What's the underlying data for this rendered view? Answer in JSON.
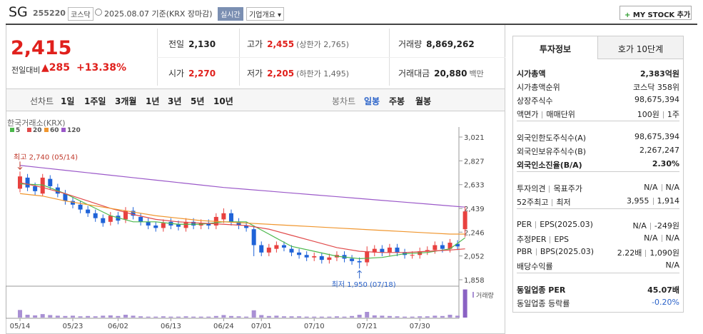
{
  "header": {
    "name": "SG",
    "code": "255220",
    "market": "코스닥",
    "date": "2025.08.07 기준(KRX 장마감)",
    "realtime": "실시간",
    "company": "기업개요",
    "mystock": "MY STOCK 추가"
  },
  "price": {
    "current": "2,415",
    "change_label": "전일대비",
    "change": "285",
    "rate": "+13.38%"
  },
  "quotes": [
    [
      {
        "label": "전일",
        "value": "2,130"
      },
      {
        "label": "고가",
        "value": "2,455",
        "note": "(상한가 2,765)",
        "color": "#e0201c"
      },
      {
        "label": "거래량",
        "value": "8,869,262"
      }
    ],
    [
      {
        "label": "시가",
        "value": "2,270",
        "color": "#e0201c"
      },
      {
        "label": "저가",
        "value": "2,205",
        "note": "(하한가 1,495)",
        "color": "#e0201c"
      },
      {
        "label": "거래대금",
        "value": "20,880",
        "note": "백만"
      }
    ]
  ],
  "periods": [
    "선차트",
    "1일",
    "1주일",
    "3개월",
    "1년",
    "3년",
    "5년",
    "10년"
  ],
  "candle_tabs": [
    "봉차트",
    "일봉",
    "주봉",
    "월봉"
  ],
  "side": {
    "tabs": [
      "투자정보",
      "호가 10단계"
    ],
    "sections": [
      [
        {
          "label": [
            "시가총액"
          ],
          "value": [
            "2,383억원"
          ],
          "bold": true
        },
        {
          "label": [
            "시가총액순위"
          ],
          "value": [
            "코스닥 358위"
          ]
        },
        {
          "label": [
            "상장주식수"
          ],
          "value": [
            "98,675,394"
          ]
        },
        {
          "label": [
            "액면가",
            "매매단위"
          ],
          "value": [
            "100원",
            "1주"
          ]
        }
      ],
      [
        {
          "label": [
            "외국인한도주식수(A)"
          ],
          "value": [
            "98,675,394"
          ]
        },
        {
          "label": [
            "외국인보유주식수(B)"
          ],
          "value": [
            "2,267,247"
          ]
        },
        {
          "label": [
            "외국인소진율(B/A)"
          ],
          "value": [
            "2.30%"
          ],
          "bold": true
        }
      ],
      [
        {
          "label": [
            "투자의견",
            "목표주가"
          ],
          "value": [
            "N/A",
            "N/A"
          ]
        },
        {
          "label": [
            "52주최고",
            "최저"
          ],
          "value": [
            "3,955",
            "1,914"
          ]
        }
      ],
      [
        {
          "label": [
            "PER",
            "EPS(2025.03)"
          ],
          "value": [
            "N/A",
            "-249원"
          ]
        },
        {
          "label": [
            "추정PER",
            "EPS"
          ],
          "value": [
            "N/A",
            "N/A"
          ]
        },
        {
          "label": [
            "PBR",
            "BPS(2025.03)"
          ],
          "value": [
            "2.22배",
            "1,090원"
          ]
        },
        {
          "label": [
            "배당수익률"
          ],
          "value": [
            "N/A"
          ]
        }
      ],
      [
        {
          "label": [
            "동일업종 PER"
          ],
          "value": [
            "45.07배"
          ],
          "bold": true
        },
        {
          "label": [
            "동일업종 등락률"
          ],
          "value": [
            "-0.20%"
          ],
          "color": "#2a62c9"
        }
      ]
    ]
  },
  "chart_data": {
    "type": "candlestick",
    "source": "한국거래소(KRX)",
    "categories": [
      "05/14",
      null,
      null,
      null,
      null,
      null,
      null,
      "05/23",
      null,
      null,
      null,
      null,
      null,
      "06/02",
      null,
      null,
      null,
      null,
      null,
      null,
      "06/13",
      null,
      null,
      null,
      null,
      null,
      null,
      "06/24",
      null,
      null,
      null,
      null,
      "07/01",
      null,
      null,
      null,
      null,
      null,
      null,
      "07/10",
      null,
      null,
      null,
      null,
      null,
      null,
      "07/21",
      null,
      null,
      null,
      null,
      null,
      null,
      "07/30",
      null,
      null,
      null,
      null,
      null,
      null
    ],
    "open": [
      2600,
      2690,
      2620,
      2560,
      2680,
      2610,
      2560,
      2500,
      2470,
      2430,
      2400,
      2360,
      2330,
      2380,
      2350,
      2420,
      2370,
      2330,
      2300,
      2280,
      2330,
      2310,
      2280,
      2330,
      2300,
      2320,
      2300,
      2350,
      2400,
      2330,
      2300,
      2270,
      2140,
      2080,
      2110,
      2140,
      2110,
      2080,
      2060,
      2040,
      2050,
      2020,
      2040,
      2060,
      2030,
      2010,
      2000,
      2080,
      2110,
      2080,
      2120,
      2080,
      2060,
      2060,
      2090,
      2100,
      2140,
      2110,
      2150,
      2270
    ],
    "high": [
      2740,
      2720,
      2650,
      2720,
      2710,
      2640,
      2590,
      2530,
      2500,
      2460,
      2430,
      2390,
      2410,
      2410,
      2450,
      2450,
      2400,
      2360,
      2330,
      2350,
      2360,
      2340,
      2360,
      2360,
      2350,
      2350,
      2400,
      2440,
      2430,
      2360,
      2330,
      2300,
      2170,
      2150,
      2170,
      2170,
      2140,
      2110,
      2090,
      2080,
      2080,
      2070,
      2090,
      2090,
      2060,
      2040,
      2130,
      2140,
      2140,
      2150,
      2150,
      2110,
      2090,
      2120,
      2130,
      2170,
      2170,
      2190,
      2180,
      2455
    ],
    "low": [
      2570,
      2580,
      2550,
      2540,
      2590,
      2530,
      2470,
      2440,
      2400,
      2370,
      2330,
      2290,
      2300,
      2310,
      2320,
      2350,
      2300,
      2270,
      2250,
      2250,
      2270,
      2260,
      2250,
      2270,
      2270,
      2270,
      2270,
      2320,
      2300,
      2270,
      2250,
      2050,
      2050,
      2050,
      2080,
      2090,
      2050,
      2030,
      2010,
      2010,
      1990,
      1990,
      2010,
      2000,
      1980,
      1950,
      1970,
      2050,
      2050,
      2050,
      2050,
      2030,
      2030,
      2030,
      2060,
      2070,
      2080,
      2080,
      2100,
      2205
    ],
    "close": [
      2700,
      2610,
      2580,
      2690,
      2620,
      2560,
      2500,
      2470,
      2430,
      2400,
      2360,
      2320,
      2380,
      2340,
      2420,
      2380,
      2330,
      2300,
      2280,
      2320,
      2300,
      2290,
      2330,
      2300,
      2320,
      2300,
      2370,
      2400,
      2330,
      2300,
      2280,
      2140,
      2080,
      2120,
      2140,
      2120,
      2080,
      2060,
      2040,
      2050,
      2020,
      2040,
      2060,
      2030,
      2010,
      2000,
      2090,
      2110,
      2080,
      2120,
      2080,
      2060,
      2060,
      2090,
      2100,
      2140,
      2110,
      2160,
      2130,
      2415
    ],
    "volume": [
      2400000,
      900000,
      700000,
      1100000,
      800000,
      600000,
      500000,
      600000,
      400000,
      500000,
      400000,
      600000,
      700000,
      500000,
      900000,
      600000,
      400000,
      300000,
      300000,
      400000,
      300000,
      300000,
      400000,
      300000,
      300000,
      300000,
      500000,
      800000,
      500000,
      400000,
      300000,
      2300000,
      800000,
      500000,
      600000,
      400000,
      400000,
      400000,
      300000,
      300000,
      300000,
      300000,
      400000,
      300000,
      500000,
      900000,
      1800000,
      700000,
      600000,
      500000,
      400000,
      300000,
      300000,
      400000,
      400000,
      600000,
      500000,
      900000,
      600000,
      8869262
    ],
    "volume_label": "거래량",
    "vlim": [
      0,
      9000000
    ],
    "ylim": [
      1858,
      3021
    ],
    "yticks": [
      {
        "value": 3021,
        "label": "3,021"
      },
      {
        "value": 2827,
        "label": "2,827"
      },
      {
        "value": 2633,
        "label": "2,633"
      },
      {
        "value": 2439,
        "label": "2,439"
      },
      {
        "value": 2246,
        "label": "2,246"
      },
      {
        "value": 2052,
        "label": "2,052"
      },
      {
        "value": 1858,
        "label": "1,858"
      }
    ],
    "up_color": "#e8413f",
    "down_color": "#1f63d8",
    "volume_color": "#a990d4",
    "series": [
      {
        "name": "5",
        "color": "#4cb84c",
        "x": [
          0,
          3,
          6,
          9,
          12,
          15,
          18,
          21,
          24,
          27,
          30,
          33,
          36,
          39,
          42,
          45,
          48,
          51,
          54,
          57,
          59
        ],
        "values": [
          2640,
          2630,
          2560,
          2470,
          2380,
          2330,
          2330,
          2310,
          2310,
          2330,
          2330,
          2230,
          2130,
          2090,
          2050,
          2030,
          2040,
          2070,
          2080,
          2110,
          2200
        ]
      },
      {
        "name": "20",
        "color": "#e14b4b",
        "x": [
          0,
          3,
          6,
          9,
          12,
          15,
          18,
          21,
          24,
          27,
          30,
          33,
          36,
          39,
          42,
          45,
          48,
          51,
          54,
          57,
          59
        ],
        "values": [
          2650,
          2610,
          2560,
          2500,
          2440,
          2390,
          2350,
          2330,
          2320,
          2310,
          2300,
          2270,
          2220,
          2170,
          2120,
          2090,
          2080,
          2080,
          2090,
          2100,
          2110
        ]
      },
      {
        "name": "60",
        "color": "#f0962e",
        "x": [
          0,
          3,
          6,
          9,
          12,
          15,
          18,
          21,
          24,
          27,
          30,
          33,
          36,
          39,
          42,
          45,
          48,
          51,
          54,
          57,
          59
        ],
        "values": [
          2560,
          2540,
          2500,
          2470,
          2440,
          2410,
          2380,
          2360,
          2340,
          2330,
          2320,
          2310,
          2300,
          2290,
          2280,
          2270,
          2260,
          2250,
          2240,
          2230,
          2230
        ]
      },
      {
        "name": "120",
        "color": "#9b59c9",
        "x": [
          0,
          3,
          6,
          9,
          12,
          15,
          18,
          21,
          24,
          27,
          30,
          33,
          36,
          39,
          42,
          45,
          48,
          51,
          54,
          57,
          59
        ],
        "values": [
          2790,
          2770,
          2750,
          2730,
          2710,
          2690,
          2670,
          2650,
          2630,
          2610,
          2595,
          2580,
          2565,
          2550,
          2535,
          2520,
          2505,
          2490,
          2475,
          2460,
          2450
        ]
      }
    ],
    "annotations": [
      {
        "text": "최고 2,740 (05/14)",
        "index": 0,
        "value": 2740
      },
      {
        "text": "최저 1,950 (07/18)",
        "index": 45,
        "value": 1950
      }
    ]
  }
}
